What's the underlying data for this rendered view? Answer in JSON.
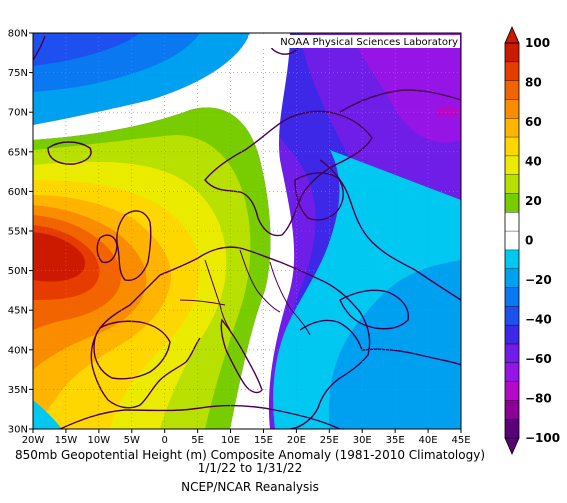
{
  "map": {
    "credit": "NOAA Physical Sciences Laboratory",
    "lon_ticks": [
      "20W",
      "15W",
      "10W",
      "5W",
      "0",
      "5E",
      "10E",
      "15E",
      "20E",
      "25E",
      "30E",
      "35E",
      "40E",
      "45E"
    ],
    "lat_ticks": [
      "80N",
      "75N",
      "70N",
      "65N",
      "60N",
      "55N",
      "50N",
      "45N",
      "40N",
      "35N",
      "30N"
    ],
    "extent": {
      "lon": [
        -20,
        45
      ],
      "lat": [
        30,
        80
      ]
    },
    "colors": {
      "p100": "#cc1a00",
      "p90": "#e63c00",
      "p80": "#f26400",
      "p70": "#fa8c00",
      "p60": "#ffb400",
      "p50": "#ffd700",
      "p40": "#ebeb00",
      "p30": "#b8e000",
      "p20": "#78cd00",
      "p10": "#b2e400",
      "zero": "#ffffff",
      "m10": "#00c8f0",
      "m20": "#00a0f0",
      "m30": "#0a78f0",
      "m40": "#1e50f0",
      "m50": "#3c28e6",
      "m60": "#6e1ee6",
      "m70": "#9614e6",
      "m80": "#b40ac8",
      "m90": "#8c0096",
      "m100": "#5a0078"
    }
  },
  "colorbar": {
    "labels": [
      "100",
      "80",
      "60",
      "40",
      "20",
      "0",
      "−20",
      "−40",
      "−60",
      "−80",
      "−100"
    ],
    "colors": [
      "#cc1a00",
      "#e63c00",
      "#f26400",
      "#fa8c00",
      "#ffb400",
      "#ffd700",
      "#ebeb00",
      "#b8e000",
      "#78cd00",
      "#ffffff",
      "#ffffff",
      "#00c8f0",
      "#00a0f0",
      "#0a78f0",
      "#1e50f0",
      "#3c28e6",
      "#6e1ee6",
      "#9614e6",
      "#b40ac8",
      "#8c0096",
      "#5a0078"
    ]
  },
  "captions": {
    "title": "850mb Geopotential Height (m) Composite Anomaly (1981-2010 Climatology)",
    "dates": "1/1/22  to 1/31/22",
    "source": "NCEP/NCAR Reanalysis"
  }
}
